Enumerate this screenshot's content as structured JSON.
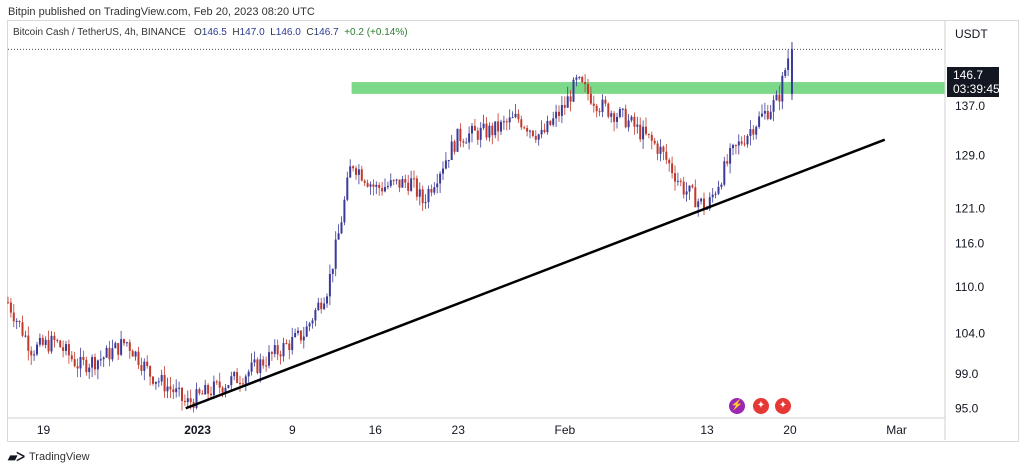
{
  "header": {
    "publisher": "Bitpin published on TradingView.com, Feb 20, 2023 08:20 UTC"
  },
  "legend": {
    "symbol": "Bitcoin Cash / TetherUS, 4h, BINANCE",
    "o_label": "O",
    "o": "146.5",
    "h_label": "H",
    "h": "147.0",
    "l_label": "L",
    "l": "146.0",
    "c_label": "C",
    "c": "146.7",
    "change": "+0.2 (+0.14%)"
  },
  "axis": {
    "currency": "USDT",
    "price_ticks": [
      "137.0",
      "129.0",
      "121.0",
      "116.0",
      "110.0",
      "104.0",
      "99.0",
      "95.0"
    ],
    "date_ticks": [
      "19",
      "2023",
      "9",
      "16",
      "23",
      "Feb",
      "13",
      "20",
      "Mar"
    ]
  },
  "price_tag": {
    "price": "146.7",
    "countdown": "03:39:45"
  },
  "footer": {
    "brand": "TradingView"
  },
  "colors": {
    "up": "#3a3a9a",
    "down": "#c0392b",
    "zone": "#7cd98a",
    "trend": "#000000"
  },
  "chart_data": {
    "type": "candlestick",
    "symbol": "Bitcoin Cash / TetherUS",
    "timeframe": "4h",
    "exchange": "BINANCE",
    "ylim": [
      94,
      152
    ],
    "y_scale": "log",
    "x_range": [
      "Dec 16, 2022",
      "Mar 5, 2023"
    ],
    "close_path": [
      [
        "Dec 16",
        108
      ],
      [
        "Dec 18",
        102
      ],
      [
        "Dec 20",
        103
      ],
      [
        "Dec 22",
        100
      ],
      [
        "Dec 24",
        101
      ],
      [
        "Dec 26",
        103
      ],
      [
        "Dec 28",
        99
      ],
      [
        "Dec 30",
        97
      ],
      [
        "Dec 31",
        95.5
      ],
      [
        "Jan 2",
        97
      ],
      [
        "Jan 5",
        99
      ],
      [
        "Jan 8",
        102
      ],
      [
        "Jan 10",
        104
      ],
      [
        "Jan 12",
        110
      ],
      [
        "Jan 13",
        118
      ],
      [
        "Jan 14",
        128
      ],
      [
        "Jan 16",
        124
      ],
      [
        "Jan 19",
        125
      ],
      [
        "Jan 20",
        122
      ],
      [
        "Jan 23",
        132
      ],
      [
        "Jan 26",
        133
      ],
      [
        "Jan 28",
        135
      ],
      [
        "Jan 30",
        132
      ],
      [
        "Feb 1",
        137
      ],
      [
        "Feb 2",
        141
      ],
      [
        "Feb 4",
        137
      ],
      [
        "Feb 6",
        135
      ],
      [
        "Feb 9",
        130
      ],
      [
        "Feb 11",
        124
      ],
      [
        "Feb 13",
        121
      ],
      [
        "Feb 15",
        129
      ],
      [
        "Feb 17",
        134
      ],
      [
        "Feb 19",
        138
      ],
      [
        "Feb 20",
        146.7
      ]
    ],
    "resistance_zone": {
      "low": 139.0,
      "high": 141.0,
      "from": "Jan 14",
      "to": "right edge"
    },
    "trendline": {
      "from": [
        "Dec 31",
        95.0
      ],
      "to": [
        "Feb 28",
        131.5
      ]
    },
    "last_price": 146.7
  }
}
